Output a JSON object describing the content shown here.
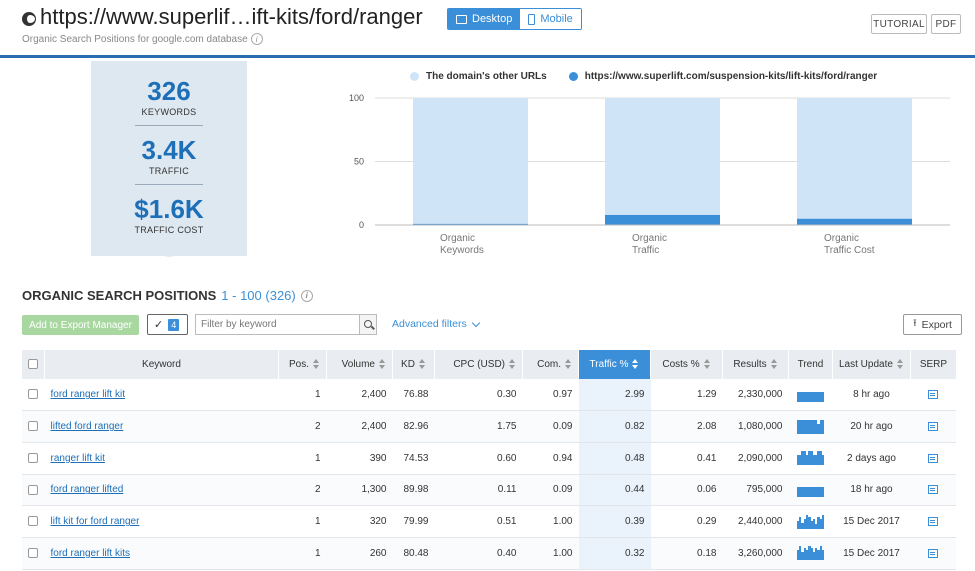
{
  "header": {
    "url": "https://www.superlif…ift-kits/ford/ranger",
    "subtitle": "Organic Search Positions for google.com database",
    "device_desktop": "Desktop",
    "device_mobile": "Mobile",
    "tutorial": "TUTORIAL",
    "pdf": "PDF"
  },
  "summary": {
    "keywords_value": "326",
    "keywords_label": "KEYWORDS",
    "traffic_value": "3.4K",
    "traffic_label": "TRAFFIC",
    "cost_value": "$1.6K",
    "cost_label": "TRAFFIC COST"
  },
  "chart_data": {
    "type": "bar",
    "stacked": true,
    "categories": [
      [
        "Organic",
        "Keywords"
      ],
      [
        "Organic",
        "Traffic"
      ],
      [
        "Organic",
        "Traffic Cost"
      ]
    ],
    "series": [
      {
        "name": "https://www.superlift.com/suspension-kits/lift-kits/ford/ranger",
        "color": "#3a8fd8",
        "values": [
          1,
          8,
          5
        ]
      },
      {
        "name": "The domain's other URLs",
        "color": "#cfe4f6",
        "values": [
          99,
          92,
          95
        ]
      }
    ],
    "yticks": [
      0,
      50,
      100
    ],
    "ylim": [
      0,
      100
    ],
    "grid": true,
    "legend": "top"
  },
  "section": {
    "title": "ORGANIC SEARCH POSITIONS",
    "range": "1 - 100 (326)"
  },
  "toolbar": {
    "export_manager": "Add to Export Manager",
    "selected_count": "4",
    "filter_placeholder": "Filter by keyword",
    "advanced_filters": "Advanced filters",
    "export": "Export"
  },
  "table": {
    "columns": [
      "Keyword",
      "Pos.",
      "Volume",
      "KD",
      "CPC (USD)",
      "Com.",
      "Traffic %",
      "Costs %",
      "Results",
      "Trend",
      "Last Update",
      "SERP"
    ],
    "rows": [
      {
        "keyword": "ford ranger lift kit",
        "pos": "1",
        "volume": "2,400",
        "kd": "76.88",
        "cpc": "0.30",
        "com": "0.97",
        "traffic": "2.99",
        "costs": "1.29",
        "results": "2,330,000",
        "trend": [
          10,
          10,
          10,
          10,
          10,
          10,
          10,
          10,
          10,
          10,
          10,
          10
        ],
        "updated": "8 hr ago"
      },
      {
        "keyword": "lifted ford ranger",
        "pos": "2",
        "volume": "2,400",
        "kd": "82.96",
        "cpc": "1.75",
        "com": "0.09",
        "traffic": "0.82",
        "costs": "2.08",
        "results": "1,080,000",
        "trend": [
          14,
          14,
          14,
          14,
          14,
          14,
          14,
          14,
          14,
          10,
          14,
          14
        ],
        "updated": "20 hr ago"
      },
      {
        "keyword": "ranger lift kit",
        "pos": "1",
        "volume": "390",
        "kd": "74.53",
        "cpc": "0.60",
        "com": "0.94",
        "traffic": "0.48",
        "costs": "0.41",
        "results": "2,090,000",
        "trend": [
          10,
          10,
          14,
          14,
          10,
          14,
          14,
          10,
          10,
          14,
          14,
          10
        ],
        "updated": "2 days ago"
      },
      {
        "keyword": "ford ranger lifted",
        "pos": "2",
        "volume": "1,300",
        "kd": "89.98",
        "cpc": "0.11",
        "com": "0.09",
        "traffic": "0.44",
        "costs": "0.06",
        "results": "795,000",
        "trend": [
          10,
          10,
          10,
          10,
          10,
          10,
          10,
          10,
          10,
          10,
          10,
          10
        ],
        "updated": "18 hr ago"
      },
      {
        "keyword": "lift kit for ford ranger",
        "pos": "1",
        "volume": "320",
        "kd": "79.99",
        "cpc": "0.51",
        "com": "1.00",
        "traffic": "0.39",
        "costs": "0.29",
        "results": "2,440,000",
        "trend": [
          8,
          12,
          6,
          10,
          14,
          12,
          8,
          10,
          5,
          12,
          10,
          14
        ],
        "updated": "15 Dec 2017"
      },
      {
        "keyword": "ford ranger lift kits",
        "pos": "1",
        "volume": "260",
        "kd": "80.48",
        "cpc": "0.40",
        "com": "1.00",
        "traffic": "0.32",
        "costs": "0.18",
        "results": "3,260,000",
        "trend": [
          10,
          14,
          8,
          12,
          10,
          14,
          12,
          8,
          12,
          10,
          14,
          10
        ],
        "updated": "15 Dec 2017"
      }
    ]
  }
}
